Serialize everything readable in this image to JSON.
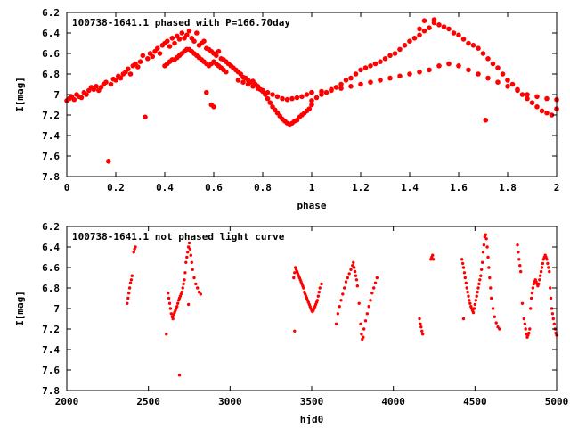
{
  "colors": {
    "points": "#ff0000",
    "axes": "#000000",
    "background": "#ffffff"
  },
  "chart_data": [
    {
      "type": "scatter",
      "title": "100738-1641.1 phased with P=166.70day",
      "xlabel": "phase",
      "ylabel": "I[mag]",
      "xlim": [
        0,
        2
      ],
      "ylim": [
        7.8,
        6.2
      ],
      "y_inverted": true,
      "xticks": [
        "0",
        "0.2",
        "0.4",
        "0.6",
        "0.8",
        "1",
        "1.2",
        "1.4",
        "1.6",
        "1.8",
        "2"
      ],
      "xtick_values": [
        0,
        0.2,
        0.4,
        0.6,
        0.8,
        1.0,
        1.2,
        1.4,
        1.6,
        1.8,
        2.0
      ],
      "yticks": [
        "6.2",
        "6.4",
        "6.6",
        "6.8",
        "7",
        "7.2",
        "7.4",
        "7.6",
        "7.8"
      ],
      "ytick_values": [
        6.2,
        6.4,
        6.6,
        6.8,
        7.0,
        7.2,
        7.4,
        7.6,
        7.8
      ],
      "grid": false,
      "marker": "filled-circle",
      "series": [
        {
          "x": [
            0.0,
            0.01,
            0.02,
            0.03,
            0.04,
            0.05,
            0.06,
            0.07,
            0.08,
            0.09,
            0.1,
            0.11,
            0.12,
            0.13,
            0.14,
            0.15,
            0.16,
            0.17,
            0.18,
            0.19,
            0.2,
            0.21,
            0.22,
            0.23,
            0.24,
            0.25,
            0.26,
            0.27,
            0.28,
            0.29,
            0.3,
            0.31,
            0.32,
            0.33,
            0.34,
            0.35,
            0.36,
            0.37,
            0.38,
            0.39,
            0.4,
            0.41,
            0.42,
            0.43,
            0.44,
            0.45,
            0.46,
            0.47,
            0.48,
            0.49,
            0.5,
            0.51,
            0.52,
            0.53,
            0.54,
            0.55,
            0.56,
            0.57,
            0.58,
            0.59,
            0.6,
            0.61,
            0.62,
            0.63,
            0.64,
            0.65,
            0.66,
            0.67,
            0.68,
            0.69,
            0.7,
            0.71,
            0.72,
            0.73,
            0.74,
            0.75,
            0.76,
            0.77,
            0.78,
            0.79,
            0.8,
            0.81,
            0.82,
            0.83,
            0.84,
            0.85,
            0.86,
            0.87,
            0.88,
            0.89,
            0.9,
            0.91,
            0.92,
            0.93,
            0.94,
            0.95,
            0.96,
            0.97,
            0.98,
            0.99,
            1.0
          ],
          "y": [
            7.06,
            7.04,
            7.02,
            7.05,
            7.0,
            7.02,
            7.03,
            6.98,
            7.0,
            6.96,
            6.93,
            6.95,
            6.92,
            6.96,
            6.93,
            6.9,
            6.88,
            7.65,
            6.9,
            6.85,
            6.86,
            6.82,
            6.84,
            6.8,
            6.78,
            6.75,
            6.8,
            6.72,
            6.7,
            6.73,
            6.68,
            6.62,
            7.22,
            6.65,
            6.6,
            6.63,
            6.58,
            6.55,
            6.6,
            6.52,
            6.5,
            6.48,
            6.53,
            6.45,
            6.5,
            6.43,
            6.46,
            6.4,
            6.45,
            6.42,
            6.38,
            6.45,
            6.48,
            6.4,
            6.52,
            6.5,
            6.48,
            6.55,
            6.56,
            6.58,
            6.6,
            6.62,
            6.58,
            6.65,
            6.66,
            6.68,
            6.7,
            6.72,
            6.74,
            6.76,
            6.78,
            6.8,
            6.83,
            6.84,
            6.86,
            6.88,
            6.87,
            6.9,
            6.92,
            6.95,
            6.97,
            7.0,
            7.04,
            7.08,
            7.12,
            7.15,
            7.18,
            7.21,
            7.24,
            7.26,
            7.28,
            7.29,
            7.28,
            7.26,
            7.25,
            7.22,
            7.2,
            7.18,
            7.16,
            7.14,
            7.1
          ]
        },
        {
          "x": [
            0.4,
            0.41,
            0.42,
            0.43,
            0.44,
            0.45,
            0.46,
            0.47,
            0.48,
            0.49,
            0.5,
            0.51,
            0.52,
            0.53,
            0.54,
            0.55,
            0.56,
            0.57,
            0.58,
            0.59,
            0.6,
            0.61,
            0.62,
            0.63,
            0.64,
            0.65,
            0.7,
            0.72,
            0.74,
            0.76,
            0.78,
            0.8,
            0.82,
            0.84,
            0.86,
            0.88,
            0.9,
            0.92,
            0.94,
            0.96,
            0.98,
            1.0,
            0.57,
            0.59,
            0.6
          ],
          "y": [
            6.72,
            6.7,
            6.68,
            6.66,
            6.66,
            6.64,
            6.62,
            6.6,
            6.58,
            6.56,
            6.56,
            6.58,
            6.6,
            6.62,
            6.64,
            6.66,
            6.68,
            6.7,
            6.72,
            6.7,
            6.68,
            6.7,
            6.72,
            6.74,
            6.76,
            6.78,
            6.86,
            6.88,
            6.9,
            6.92,
            6.94,
            6.96,
            6.98,
            7.0,
            7.02,
            7.04,
            7.05,
            7.04,
            7.03,
            7.02,
            7.0,
            6.98,
            6.98,
            7.1,
            7.12
          ]
        },
        {
          "x": [
            1.0,
            1.02,
            1.04,
            1.06,
            1.08,
            1.1,
            1.12,
            1.14,
            1.16,
            1.18,
            1.2,
            1.22,
            1.24,
            1.26,
            1.28,
            1.3,
            1.32,
            1.34,
            1.36,
            1.38,
            1.4,
            1.42,
            1.44,
            1.46,
            1.48,
            1.5,
            1.52,
            1.54,
            1.56,
            1.58,
            1.6,
            1.62,
            1.64,
            1.66,
            1.68,
            1.7,
            1.71,
            1.72,
            1.74,
            1.76,
            1.78,
            1.8,
            1.82,
            1.84,
            1.86,
            1.88,
            1.9,
            1.92,
            1.94,
            1.96,
            1.98,
            2.0
          ],
          "y": [
            7.06,
            7.03,
            7.0,
            6.98,
            6.95,
            6.93,
            6.9,
            6.86,
            6.84,
            6.8,
            6.76,
            6.74,
            6.72,
            6.7,
            6.68,
            6.65,
            6.62,
            6.6,
            6.56,
            6.52,
            6.48,
            6.45,
            6.42,
            6.38,
            6.35,
            6.3,
            6.32,
            6.34,
            6.36,
            6.4,
            6.42,
            6.46,
            6.5,
            6.52,
            6.55,
            6.6,
            7.25,
            6.65,
            6.7,
            6.74,
            6.8,
            6.86,
            6.9,
            6.95,
            7.0,
            7.04,
            7.08,
            7.12,
            7.16,
            7.18,
            7.2,
            7.14
          ]
        },
        {
          "x": [
            1.0,
            1.04,
            1.08,
            1.12,
            1.16,
            1.2,
            1.24,
            1.28,
            1.32,
            1.36,
            1.4,
            1.44,
            1.48,
            1.52,
            1.56,
            1.6,
            1.64,
            1.68,
            1.72,
            1.76,
            1.8,
            1.84,
            1.88,
            1.92,
            1.96,
            2.0,
            1.46,
            1.5,
            1.44
          ],
          "y": [
            6.98,
            6.97,
            6.96,
            6.94,
            6.92,
            6.9,
            6.88,
            6.86,
            6.84,
            6.82,
            6.8,
            6.78,
            6.76,
            6.72,
            6.7,
            6.72,
            6.76,
            6.8,
            6.84,
            6.88,
            6.92,
            6.96,
            7.0,
            7.02,
            7.04,
            7.05,
            6.28,
            6.27,
            6.36
          ]
        }
      ]
    },
    {
      "type": "scatter",
      "title": "100738-1641.1 not phased light curve",
      "xlabel": "hjd0",
      "ylabel": "I[mag]",
      "xlim": [
        2000,
        5000
      ],
      "ylim": [
        7.8,
        6.2
      ],
      "y_inverted": true,
      "xticks": [
        "2000",
        "2500",
        "3000",
        "3500",
        "4000",
        "4500",
        "5000"
      ],
      "xtick_values": [
        2000,
        2500,
        3000,
        3500,
        4000,
        4500,
        5000
      ],
      "yticks": [
        "6.2",
        "6.4",
        "6.6",
        "6.8",
        "7",
        "7.2",
        "7.4",
        "7.6",
        "7.8"
      ],
      "ytick_values": [
        6.2,
        6.4,
        6.6,
        6.8,
        7.0,
        7.2,
        7.4,
        7.6,
        7.8
      ],
      "grid": false,
      "marker": "filled-circle-small",
      "series": [
        {
          "x": [
            2370,
            2375,
            2380,
            2385,
            2390,
            2395,
            2400,
            2410,
            2415,
            2420
          ],
          "y": [
            6.95,
            6.9,
            6.85,
            6.8,
            6.75,
            6.72,
            6.68,
            6.45,
            6.42,
            6.4
          ]
        },
        {
          "x": [
            2610,
            2620,
            2625,
            2630,
            2635,
            2640,
            2645,
            2650,
            2655,
            2660,
            2665,
            2670,
            2675,
            2680,
            2685,
            2690,
            2695,
            2700,
            2705,
            2710,
            2715,
            2720,
            2725,
            2730,
            2735,
            2740,
            2745,
            2750,
            2755,
            2760,
            2765,
            2770,
            2780,
            2790,
            2800,
            2810,
            2820,
            2690,
            2745
          ],
          "y": [
            7.25,
            6.85,
            6.9,
            6.95,
            7.0,
            7.05,
            7.08,
            7.1,
            7.06,
            7.04,
            7.02,
            7.0,
            6.98,
            6.95,
            6.92,
            6.9,
            6.88,
            6.86,
            6.84,
            6.8,
            6.76,
            6.72,
            6.65,
            6.55,
            6.5,
            6.45,
            6.4,
            6.36,
            6.42,
            6.48,
            6.55,
            6.62,
            6.7,
            6.76,
            6.8,
            6.84,
            6.86,
            7.65,
            6.96
          ]
        },
        {
          "x": [
            3390,
            3395,
            3400,
            3405,
            3410,
            3415,
            3420,
            3425,
            3430,
            3435,
            3440,
            3445,
            3450,
            3455,
            3460,
            3465,
            3470,
            3475,
            3480,
            3485,
            3490,
            3495,
            3500,
            3505,
            3510,
            3515,
            3520,
            3525,
            3530,
            3535,
            3540,
            3545,
            3550,
            3560,
            3395
          ],
          "y": [
            6.7,
            6.65,
            6.6,
            6.62,
            6.64,
            6.66,
            6.68,
            6.7,
            6.72,
            6.74,
            6.76,
            6.78,
            6.8,
            6.84,
            6.86,
            6.88,
            6.9,
            6.92,
            6.94,
            6.96,
            6.98,
            7.0,
            7.02,
            7.03,
            7.02,
            7.0,
            6.98,
            6.96,
            6.94,
            6.92,
            6.88,
            6.84,
            6.8,
            6.76,
            7.22
          ]
        },
        {
          "x": [
            3650,
            3660,
            3670,
            3680,
            3690,
            3700,
            3710,
            3720,
            3730,
            3740,
            3750,
            3755,
            3760,
            3765,
            3770,
            3775,
            3780,
            3790,
            3800,
            3805,
            3810,
            3815,
            3820,
            3830,
            3840,
            3850,
            3860,
            3870,
            3880,
            3890,
            3900
          ],
          "y": [
            7.15,
            7.05,
            6.98,
            6.92,
            6.86,
            6.8,
            6.74,
            6.7,
            6.66,
            6.62,
            6.58,
            6.55,
            6.6,
            6.64,
            6.68,
            6.72,
            6.78,
            6.95,
            7.15,
            7.25,
            7.3,
            7.28,
            7.2,
            7.12,
            7.05,
            6.98,
            6.92,
            6.85,
            6.8,
            6.75,
            6.7
          ]
        },
        {
          "x": [
            4160,
            4165,
            4170,
            4175,
            4180,
            4230,
            4235,
            4240,
            4245
          ],
          "y": [
            7.1,
            7.15,
            7.18,
            7.22,
            7.25,
            6.52,
            6.5,
            6.48,
            6.52
          ]
        },
        {
          "x": [
            4420,
            4425,
            4430,
            4435,
            4440,
            4445,
            4450,
            4455,
            4460,
            4465,
            4470,
            4475,
            4480,
            4485,
            4490,
            4495,
            4500,
            4505,
            4510,
            4515,
            4520,
            4525,
            4530,
            4535,
            4540,
            4545,
            4550,
            4555,
            4560,
            4565,
            4570,
            4575,
            4580,
            4585,
            4590,
            4595,
            4600,
            4610,
            4620,
            4630,
            4640,
            4650,
            4430
          ],
          "y": [
            6.52,
            6.56,
            6.6,
            6.65,
            6.7,
            6.75,
            6.8,
            6.84,
            6.88,
            6.92,
            6.95,
            6.98,
            7.0,
            7.02,
            7.04,
            7.0,
            6.96,
            6.92,
            6.88,
            6.84,
            6.8,
            6.76,
            6.72,
            6.68,
            6.62,
            6.55,
            6.45,
            6.38,
            6.3,
            6.28,
            6.32,
            6.4,
            6.5,
            6.6,
            6.7,
            6.8,
            6.9,
            7.0,
            7.08,
            7.14,
            7.18,
            7.2,
            7.1
          ]
        },
        {
          "x": [
            4760,
            4765,
            4770,
            4775,
            4780,
            4790,
            4800,
            4805,
            4810,
            4815,
            4820,
            4825,
            4830,
            4835,
            4840,
            4845,
            4850,
            4855,
            4860,
            4865,
            4870,
            4875,
            4880,
            4885,
            4890,
            4895,
            4900,
            4905,
            4910,
            4915,
            4920,
            4925,
            4930,
            4935,
            4940,
            4945,
            4950,
            4955,
            4960,
            4965,
            4970,
            4975,
            4980,
            4985,
            4990,
            4995,
            5000
          ],
          "y": [
            6.38,
            6.45,
            6.52,
            6.58,
            6.64,
            6.95,
            7.1,
            7.15,
            7.2,
            7.25,
            7.28,
            7.26,
            7.24,
            7.2,
            7.0,
            6.9,
            6.85,
            6.8,
            6.76,
            6.74,
            6.72,
            6.74,
            6.76,
            6.78,
            6.76,
            6.72,
            6.68,
            6.64,
            6.6,
            6.56,
            6.52,
            6.5,
            6.48,
            6.5,
            6.52,
            6.56,
            6.6,
            6.64,
            6.8,
            6.9,
            7.0,
            7.05,
            7.1,
            7.15,
            7.2,
            7.24,
            7.26
          ]
        }
      ]
    }
  ]
}
